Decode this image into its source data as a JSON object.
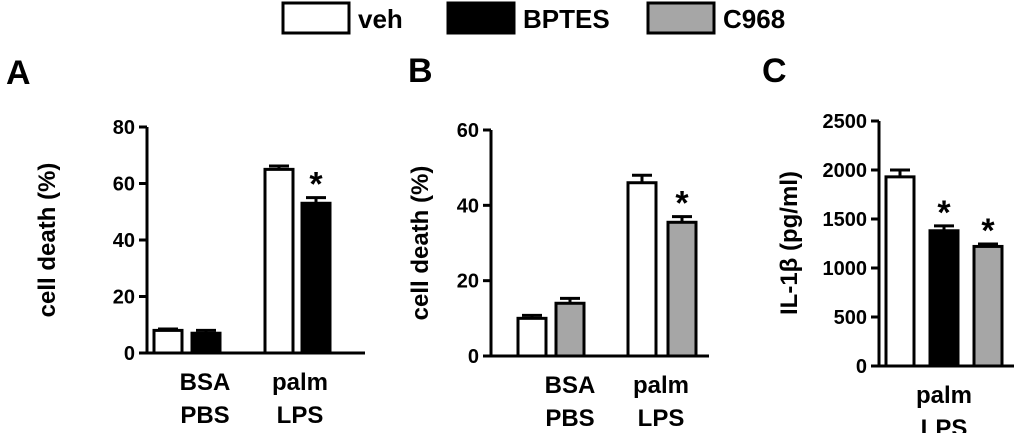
{
  "legend": [
    {
      "label": "veh",
      "color": "#ffffff"
    },
    {
      "label": "BPTES",
      "color": "#000000"
    },
    {
      "label": "C968",
      "color": "#a6a6a6"
    }
  ],
  "chart_data": [
    {
      "type": "bar",
      "panel": "A",
      "ylabel": "cell death (%)",
      "ylim": [
        0,
        80
      ],
      "yticks": [
        0,
        20,
        40,
        60,
        80
      ],
      "categories": [
        [
          "BSA",
          "PBS"
        ],
        [
          "palm",
          "LPS"
        ]
      ],
      "series": [
        {
          "name": "veh",
          "color": "#ffffff",
          "values": [
            8,
            65
          ],
          "errors": [
            0.5,
            1.2
          ]
        },
        {
          "name": "BPTES",
          "color": "#000000",
          "values": [
            7,
            53
          ],
          "errors": [
            1.0,
            2.0
          ]
        }
      ],
      "annotations": [
        {
          "text": "*",
          "category": 1,
          "series": 1
        }
      ]
    },
    {
      "type": "bar",
      "panel": "B",
      "ylabel": "cell death (%)",
      "ylim": [
        0,
        60
      ],
      "yticks": [
        0,
        20,
        40,
        60
      ],
      "categories": [
        [
          "BSA",
          "PBS"
        ],
        [
          "palm",
          "LPS"
        ]
      ],
      "series": [
        {
          "name": "veh",
          "color": "#ffffff",
          "values": [
            10,
            46
          ],
          "errors": [
            0.8,
            2.0
          ]
        },
        {
          "name": "C968",
          "color": "#a6a6a6",
          "values": [
            14,
            35.5
          ],
          "errors": [
            1.3,
            1.5
          ]
        }
      ],
      "annotations": [
        {
          "text": "*",
          "category": 1,
          "series": 1
        }
      ]
    },
    {
      "type": "bar",
      "panel": "C",
      "ylabel": "IL-1β (pg/ml)",
      "ylim": [
        0,
        2500
      ],
      "yticks": [
        0,
        500,
        1000,
        1500,
        2000,
        2500
      ],
      "categories": [
        [
          "palm",
          "LPS"
        ]
      ],
      "series": [
        {
          "name": "veh",
          "color": "#ffffff",
          "values": [
            1930
          ],
          "errors": [
            70
          ]
        },
        {
          "name": "BPTES",
          "color": "#000000",
          "values": [
            1380
          ],
          "errors": [
            50
          ]
        },
        {
          "name": "C968",
          "color": "#a6a6a6",
          "values": [
            1220
          ],
          "errors": [
            25
          ]
        }
      ],
      "annotations": [
        {
          "text": "*",
          "category": 0,
          "series": 1
        },
        {
          "text": "*",
          "category": 0,
          "series": 2
        }
      ]
    }
  ]
}
